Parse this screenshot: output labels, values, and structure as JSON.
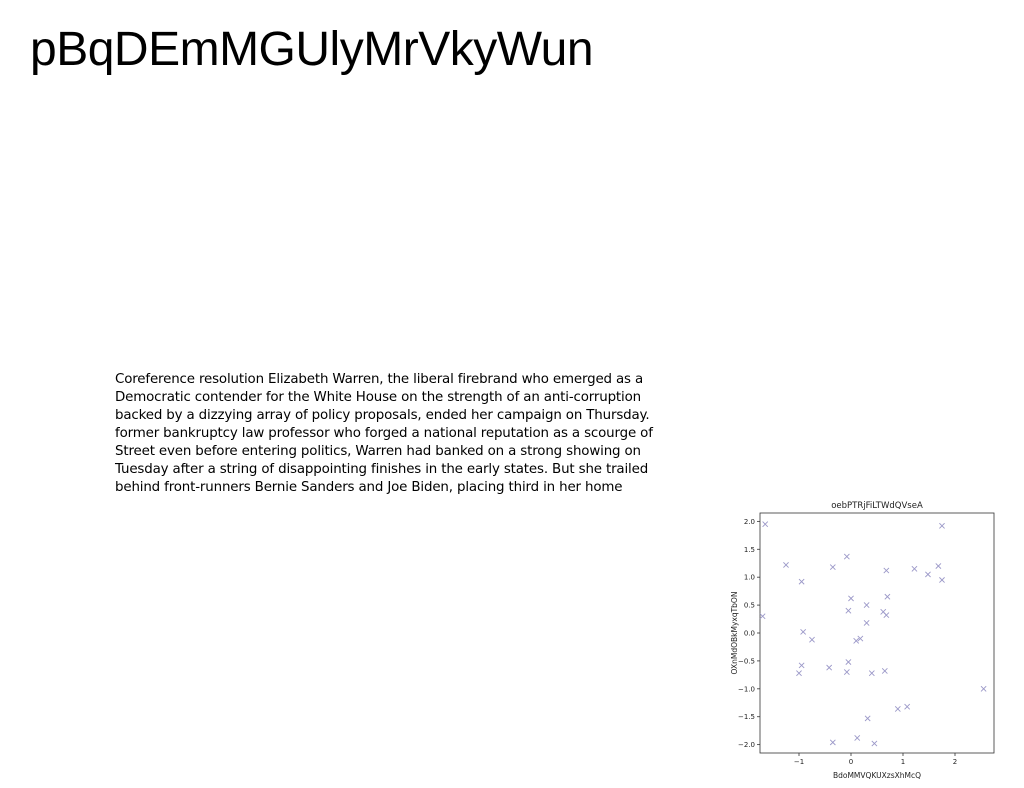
{
  "document": {
    "title": "pBqDEmMGUlyMrVkyWun",
    "paragraph_lines": [
      "Coreference resolution Elizabeth Warren, the liberal firebrand who emerged as a",
      "Democratic contender for the White House on the strength of an anti-corruption",
      "backed by a dizzying array of policy proposals, ended her campaign on Thursday.",
      "former bankruptcy law professor who forged a national reputation as a scourge of",
      "Street even before entering politics, Warren had banked on a strong showing on",
      "Tuesday after a string of disappointing finishes in the early states. But she trailed",
      "behind front-runners Bernie Sanders and Joe Biden, placing third in her home"
    ]
  },
  "chart_data": {
    "type": "scatter",
    "title": "oebPTRjFiLTWdQVseA",
    "xlabel": "BdoMMVQKUXzsXhMcQ",
    "ylabel": "OXnMdOBkMyxqTbON",
    "marker": "x",
    "color": "#9b98c8",
    "xlim": [
      -1.75,
      2.75
    ],
    "ylim": [
      -2.15,
      2.15
    ],
    "xticks": [
      -1,
      0,
      1,
      2
    ],
    "xtick_labels": [
      "−1",
      "0",
      "1",
      "2"
    ],
    "yticks": [
      2.0,
      1.5,
      1.0,
      0.5,
      0.0,
      -0.5,
      -1.0,
      -1.5,
      -2.0
    ],
    "ytick_labels": [
      "2.0",
      "1.5",
      "1.0",
      "0.5",
      "0.0",
      "−0.5",
      "−1.0",
      "−1.5",
      "−2.0"
    ],
    "grid": false,
    "points": [
      {
        "x": -1.65,
        "y": 1.95
      },
      {
        "x": -1.25,
        "y": 1.22
      },
      {
        "x": -0.95,
        "y": 0.92
      },
      {
        "x": -1.7,
        "y": 0.3
      },
      {
        "x": -0.92,
        "y": 0.02
      },
      {
        "x": -0.75,
        "y": -0.12
      },
      {
        "x": -0.95,
        "y": -0.58
      },
      {
        "x": -1.0,
        "y": -0.72
      },
      {
        "x": -0.35,
        "y": 1.18
      },
      {
        "x": -0.08,
        "y": 1.37
      },
      {
        "x": 0.0,
        "y": 0.62
      },
      {
        "x": -0.05,
        "y": 0.4
      },
      {
        "x": 0.3,
        "y": 0.5
      },
      {
        "x": 0.3,
        "y": 0.18
      },
      {
        "x": 0.62,
        "y": 0.38
      },
      {
        "x": 0.68,
        "y": 0.32
      },
      {
        "x": 0.7,
        "y": 0.65
      },
      {
        "x": 0.68,
        "y": 1.12
      },
      {
        "x": 0.1,
        "y": -0.14
      },
      {
        "x": 0.18,
        "y": -0.1
      },
      {
        "x": -0.42,
        "y": -0.62
      },
      {
        "x": -0.05,
        "y": -0.52
      },
      {
        "x": -0.08,
        "y": -0.7
      },
      {
        "x": 0.4,
        "y": -0.72
      },
      {
        "x": 0.65,
        "y": -0.68
      },
      {
        "x": 1.22,
        "y": 1.15
      },
      {
        "x": 1.48,
        "y": 1.05
      },
      {
        "x": 1.68,
        "y": 1.2
      },
      {
        "x": 1.75,
        "y": 0.95
      },
      {
        "x": 1.75,
        "y": 1.92
      },
      {
        "x": 2.55,
        "y": -1.0
      },
      {
        "x": 0.9,
        "y": -1.36
      },
      {
        "x": 1.08,
        "y": -1.32
      },
      {
        "x": 0.32,
        "y": -1.53
      },
      {
        "x": 0.12,
        "y": -1.88
      },
      {
        "x": -0.35,
        "y": -1.96
      },
      {
        "x": 0.45,
        "y": -1.98
      }
    ]
  }
}
